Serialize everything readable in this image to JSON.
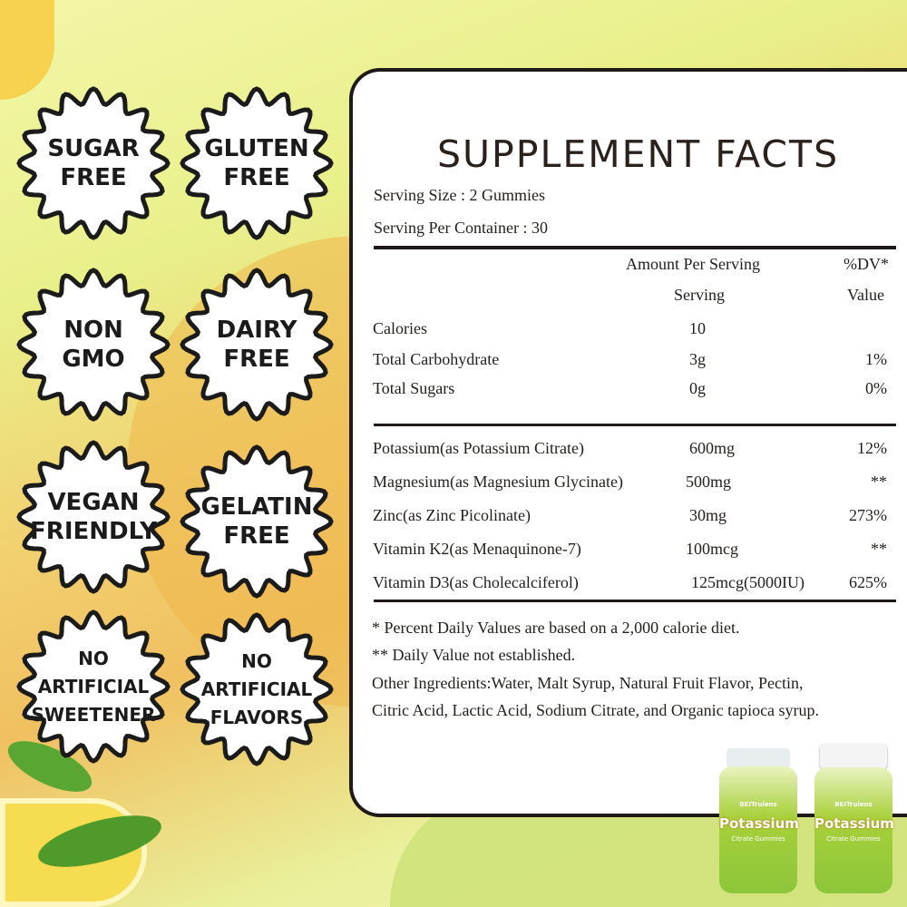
{
  "badges": [
    {
      "lines": [
        "SUGAR",
        "FREE"
      ]
    },
    {
      "lines": [
        "GLUTEN",
        "FREE"
      ]
    },
    {
      "lines": [
        "NON",
        "GMO"
      ]
    },
    {
      "lines": [
        "DAIRY",
        "FREE"
      ]
    },
    {
      "lines": [
        "VEGAN",
        "FRIENDLY"
      ]
    },
    {
      "lines": [
        "GELATIN",
        "FREE"
      ]
    },
    {
      "lines": [
        "NO",
        "ARTIFICIAL",
        "SWEETENER"
      ]
    },
    {
      "lines": [
        "NO",
        "ARTIFICIAL",
        "FLAVORS"
      ]
    }
  ],
  "facts": {
    "title": "SUPPLEMENT FACTS",
    "serving_size": "Serving Size :  2 Gummies",
    "servings_per_container": "Serving Per Container : 30",
    "header": {
      "amount_1": "Amount Per Serving",
      "amount_2": "Serving",
      "dv_1": "%DV*",
      "dv_2": "Value"
    },
    "rows_basic": [
      {
        "name": "Calories",
        "amount": "10",
        "dv": ""
      },
      {
        "name": "Total Carbohydrate",
        "amount": "3g",
        "dv": "1%"
      },
      {
        "name": "Total Sugars",
        "amount": "0g",
        "dv": "0%"
      }
    ],
    "rows_nutrients": [
      {
        "name": "Potassium(as Potassium Citrate)",
        "amount": "600mg",
        "dv": "12%"
      },
      {
        "name": "Magnesium(as Magnesium Glycinate)",
        "amount": "500mg",
        "dv": "**"
      },
      {
        "name": "Zinc(as Zinc Picolinate)",
        "amount": "30mg",
        "dv": "273%"
      },
      {
        "name": "Vitamin K2(as Menaquinone-7)",
        "amount": "100mcg",
        "dv": "**"
      },
      {
        "name": "Vitamin D3(as Cholecalciferol)",
        "amount": "125mcg(5000IU)",
        "dv": "625%"
      }
    ],
    "footnote_1": "* Percent Daily Values are based on a 2,000 calorie diet.",
    "footnote_2": "** Daily Value not established.",
    "ingredients_1": "Other Ingredients:Water, Malt Syrup, Natural Fruit Flavor, Pectin,",
    "ingredients_2": "Citric Acid, Lactic Acid, Sodium Citrate, and Organic tapioca syrup."
  },
  "product": {
    "brand": "BEITrulens",
    "name": "Potassium",
    "subtitle": "Citrate Gummies"
  },
  "colors": {
    "card_border": "#1f1a17",
    "badge_fill": "#ffffff",
    "text": "#231f1c",
    "accent_yellow": "#f2d070",
    "accent_green": "#b6d94a"
  }
}
